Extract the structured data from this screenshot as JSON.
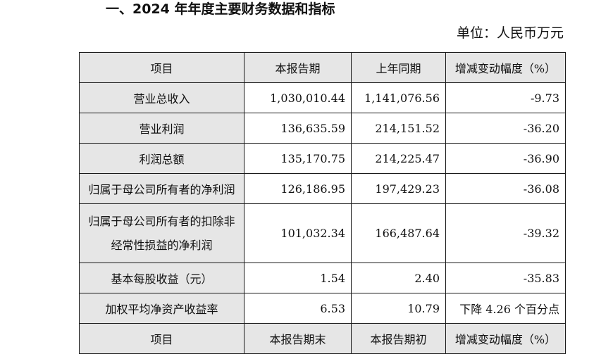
{
  "section_title": "一、2024 年年度主要财务数据和指标",
  "unit_note": "单位：人民币万元",
  "headers": [
    "项目",
    "本报告期",
    "上年同期",
    "增减变动幅度（%）"
  ],
  "rows": [
    {
      "item": "营业总收入",
      "current": "1,030,010.44",
      "prior": "1,141,076.56",
      "change": "-9.73"
    },
    {
      "item": "营业利润",
      "current": "136,635.59",
      "prior": "214,151.52",
      "change": "-36.20"
    },
    {
      "item": "利润总额",
      "current": "135,170.75",
      "prior": "214,225.47",
      "change": "-36.90"
    },
    {
      "item": "归属于母公司所有者的净利润",
      "current": "126,186.95",
      "prior": "197,429.23",
      "change": "-36.08"
    },
    {
      "item": "归属于母公司所有者的扣除非经常性损益的净利润",
      "current": "101,032.34",
      "prior": "166,487.64",
      "change": "-39.32"
    },
    {
      "item": "基本每股收益（元）",
      "current": "1.54",
      "prior": "2.40",
      "change": "-35.83"
    },
    {
      "item": "加权平均净资产收益率",
      "current": "6.53",
      "prior": "10.79",
      "change": "下降 4.26 个百分点"
    }
  ],
  "headers2": [
    "项目",
    "本报告期末",
    "本报告期初",
    "增减变动幅度（%）"
  ]
}
